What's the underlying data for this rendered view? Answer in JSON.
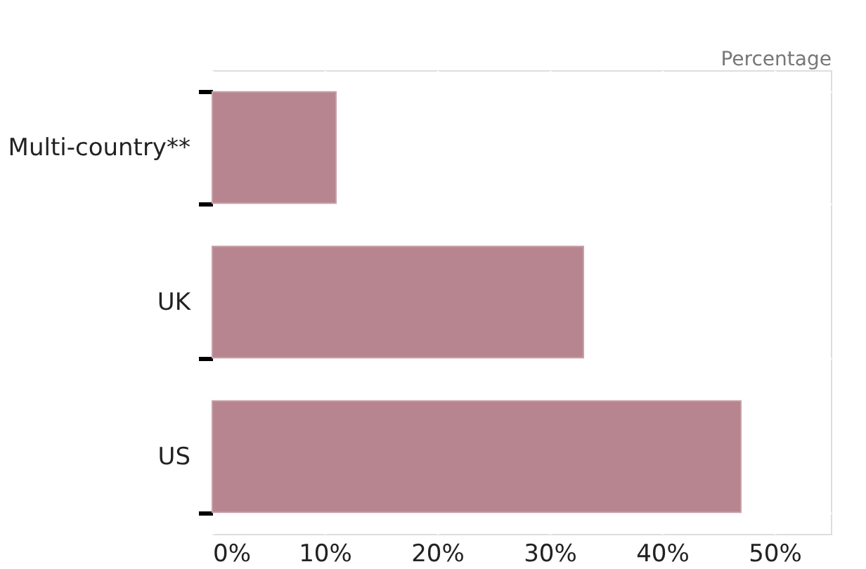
{
  "chart_data": {
    "type": "bar",
    "orientation": "horizontal",
    "xlabel": "Percentage",
    "categories": [
      "Multi-country**",
      "UK",
      "US"
    ],
    "values": [
      11,
      33,
      47
    ],
    "color": "#b7858f",
    "xlim": [
      0,
      55
    ],
    "xticks": [
      {
        "value": 0,
        "label": "0%"
      },
      {
        "value": 10,
        "label": "10%"
      },
      {
        "value": 20,
        "label": "20%"
      },
      {
        "value": 30,
        "label": "30%"
      },
      {
        "value": 40,
        "label": "40%"
      },
      {
        "value": 50,
        "label": "50%"
      }
    ],
    "grid": true
  }
}
